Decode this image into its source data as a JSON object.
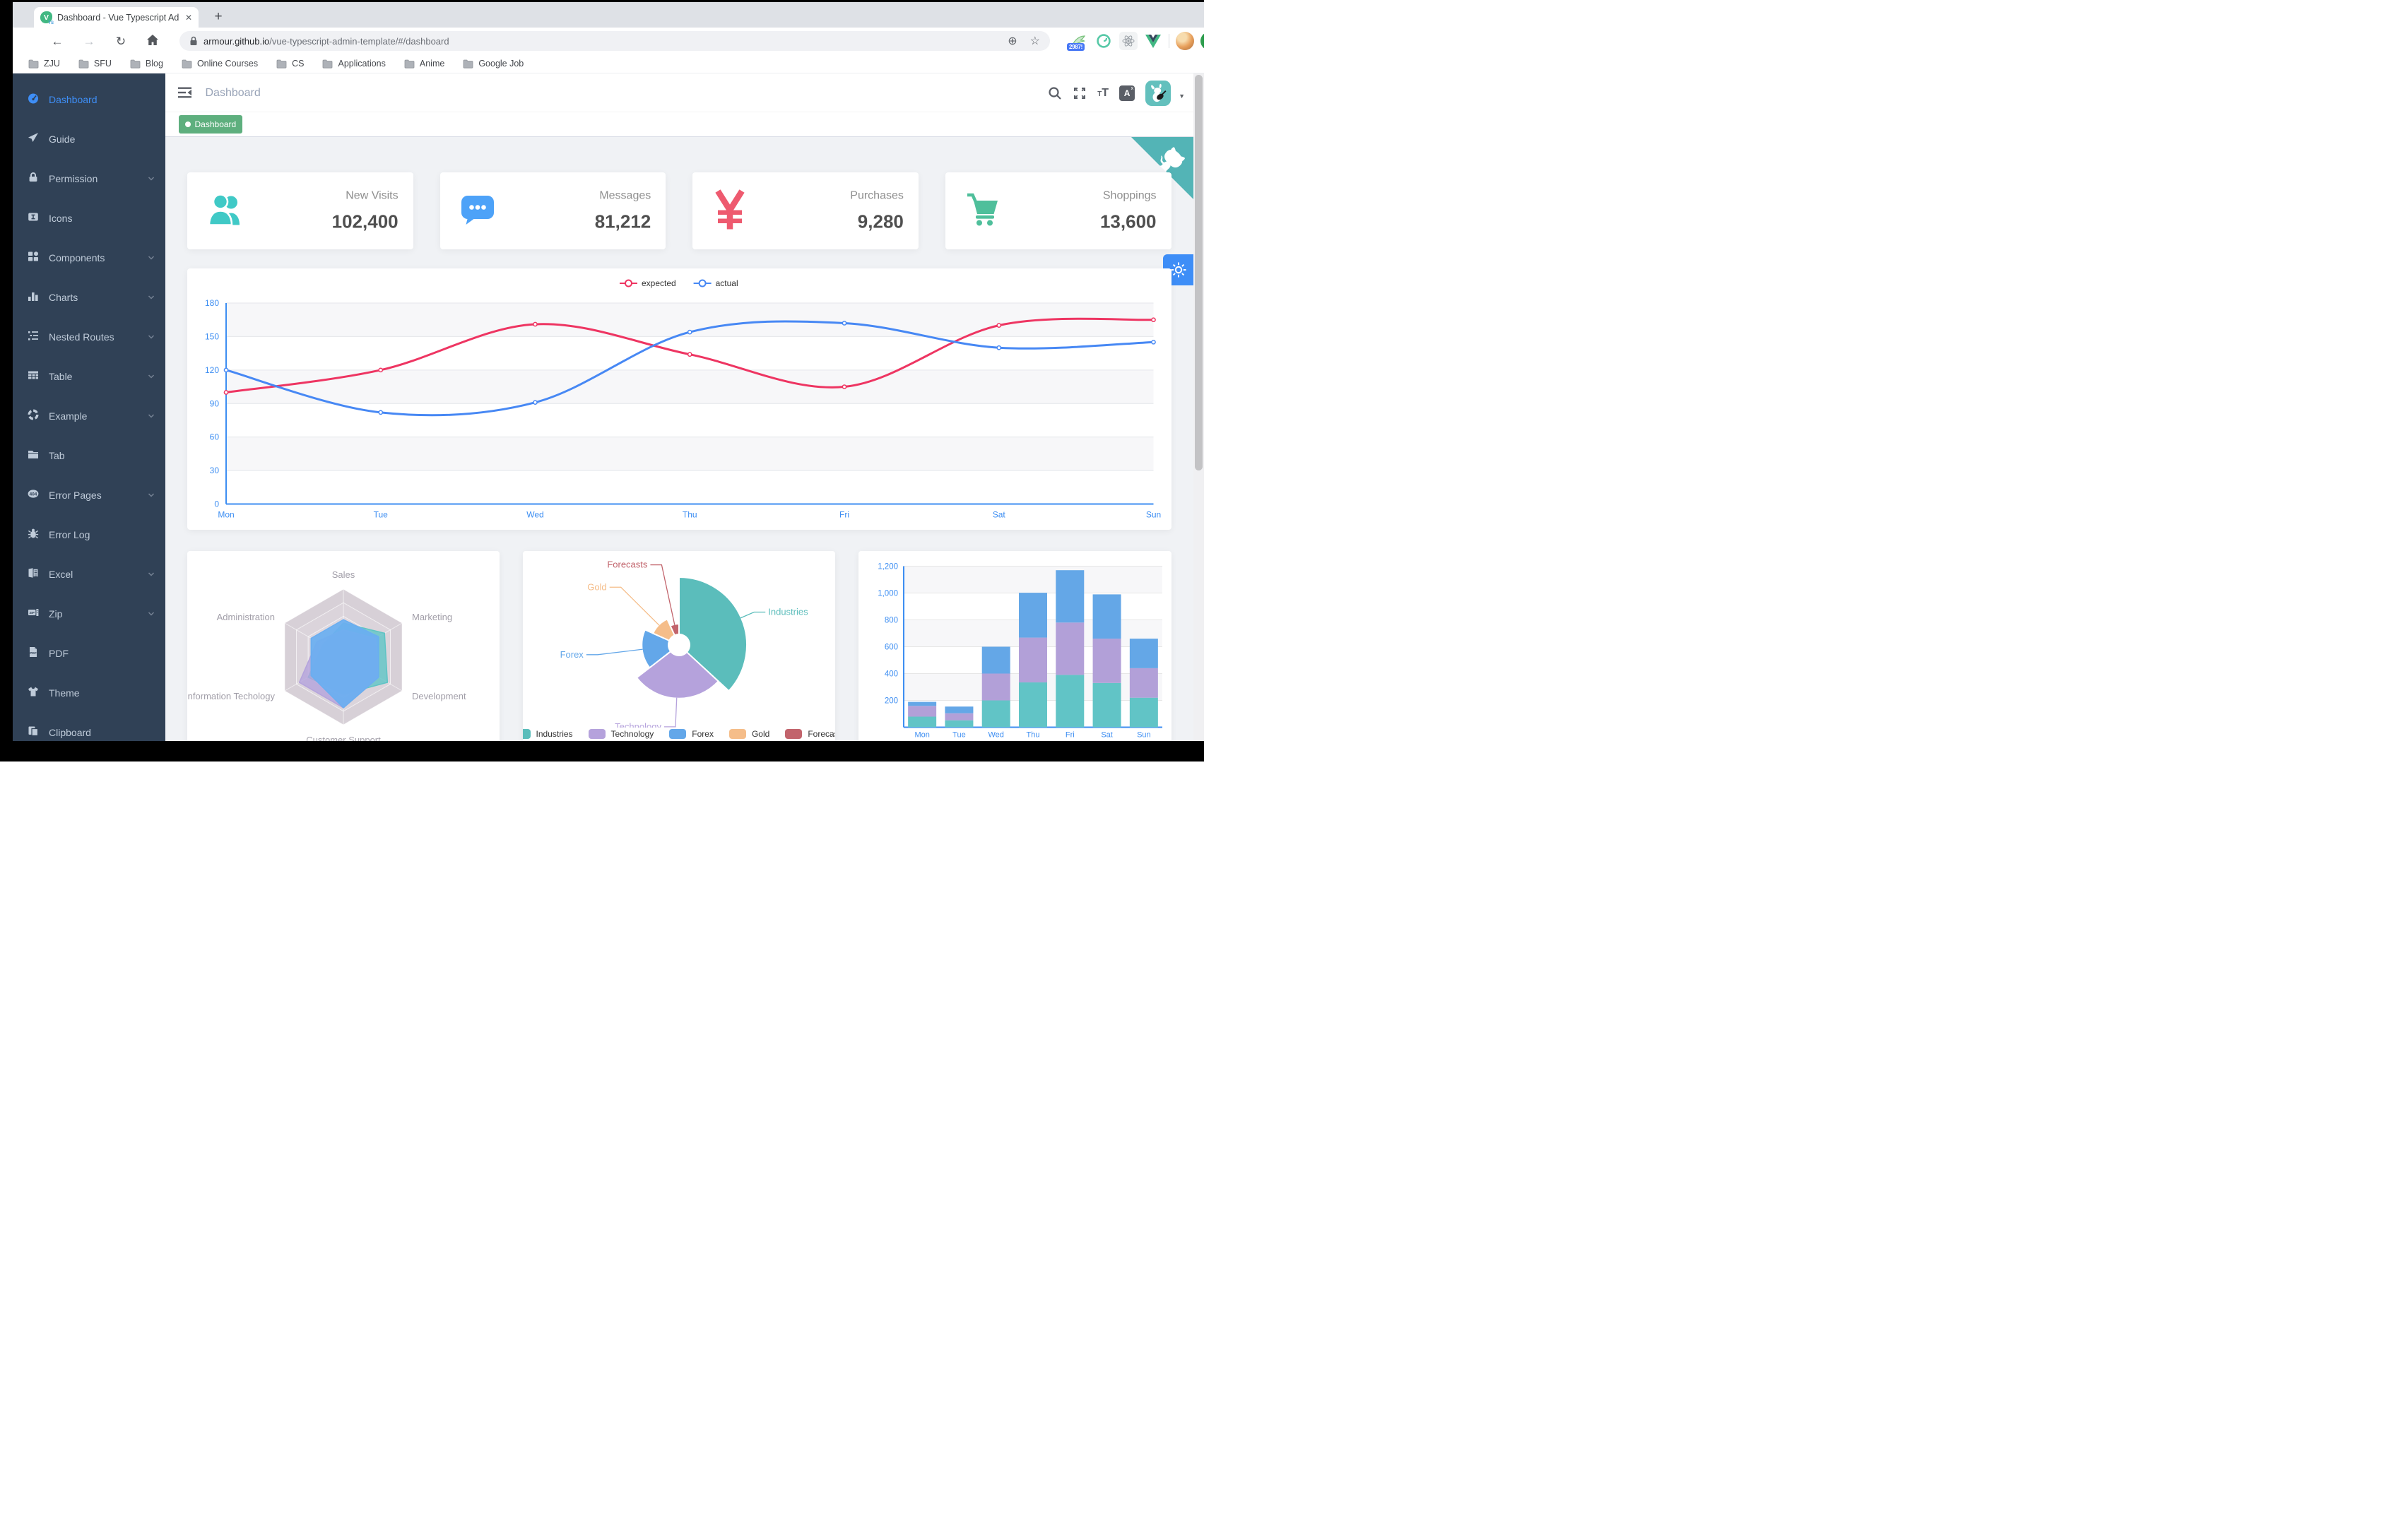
{
  "browser": {
    "tab_title": "Dashboard - Vue Typescript Ad",
    "close_label": "✕",
    "new_tab_label": "+",
    "back_label": "←",
    "forward_label": "→",
    "reload_label": "↻",
    "zoom_label": "⊕",
    "star_label": "☆",
    "update_label": "↑",
    "url_host": "armour.github.io",
    "url_path": "/vue-typescript-admin-template/#/dashboard",
    "bookmarks": [
      "ZJU",
      "SFU",
      "Blog",
      "Online Courses",
      "CS",
      "Applications",
      "Anime",
      "Google Job"
    ],
    "extension_badge": "2987!"
  },
  "app": {
    "breadcrumb": "Dashboard",
    "tag": {
      "label": "Dashboard",
      "color": "#5eaf7e"
    },
    "sidebar": [
      {
        "label": "Dashboard",
        "icon": "dashboard-icon",
        "active": true,
        "chevron": false
      },
      {
        "label": "Guide",
        "icon": "guide-icon",
        "active": false,
        "chevron": false
      },
      {
        "label": "Permission",
        "icon": "lock-icon",
        "active": false,
        "chevron": true
      },
      {
        "label": "Icons",
        "icon": "icons-icon",
        "active": false,
        "chevron": false
      },
      {
        "label": "Components",
        "icon": "components-icon",
        "active": false,
        "chevron": true
      },
      {
        "label": "Charts",
        "icon": "charts-icon",
        "active": false,
        "chevron": true
      },
      {
        "label": "Nested Routes",
        "icon": "nested-routes-icon",
        "active": false,
        "chevron": true
      },
      {
        "label": "Table",
        "icon": "table-icon",
        "active": false,
        "chevron": true
      },
      {
        "label": "Example",
        "icon": "example-icon",
        "active": false,
        "chevron": true
      },
      {
        "label": "Tab",
        "icon": "tab-icon",
        "active": false,
        "chevron": false
      },
      {
        "label": "Error Pages",
        "icon": "error-pages-icon",
        "active": false,
        "chevron": true
      },
      {
        "label": "Error Log",
        "icon": "bug-icon",
        "active": false,
        "chevron": false
      },
      {
        "label": "Excel",
        "icon": "excel-icon",
        "active": false,
        "chevron": true
      },
      {
        "label": "Zip",
        "icon": "zip-icon",
        "active": false,
        "chevron": true
      },
      {
        "label": "PDF",
        "icon": "pdf-icon",
        "active": false,
        "chevron": false
      },
      {
        "label": "Theme",
        "icon": "theme-icon",
        "active": false,
        "chevron": false
      },
      {
        "label": "Clipboard",
        "icon": "clipboard-icon",
        "active": false,
        "chevron": false
      }
    ],
    "stats": [
      {
        "title": "New Visits",
        "value": "102,400",
        "icon": "people-icon",
        "color": "#40c9c6"
      },
      {
        "title": "Messages",
        "value": "81,212",
        "icon": "message-icon",
        "color": "#4da2f8"
      },
      {
        "title": "Purchases",
        "value": "9,280",
        "icon": "money-icon",
        "color": "#ee5a6f"
      },
      {
        "title": "Shoppings",
        "value": "13,600",
        "icon": "shopping-icon",
        "color": "#4fbf9b"
      }
    ]
  },
  "chart_data": [
    {
      "type": "line",
      "x": [
        "Mon",
        "Tue",
        "Wed",
        "Thu",
        "Fri",
        "Sat",
        "Sun"
      ],
      "series": [
        {
          "name": "expected",
          "color": "#ee3562",
          "values": [
            100,
            120,
            161,
            134,
            105,
            160,
            165
          ]
        },
        {
          "name": "actual",
          "color": "#4788f4",
          "values": [
            120,
            82,
            91,
            154,
            162,
            140,
            145
          ]
        }
      ],
      "ylim": [
        0,
        180
      ],
      "ytick": 30,
      "legend_position": "top",
      "grid": true,
      "axis_color": "#3d8ef2"
    },
    {
      "type": "radar",
      "indicators": [
        {
          "name": "Sales",
          "max": 10000
        },
        {
          "name": "Marketing",
          "max": 20000
        },
        {
          "name": "Development",
          "max": 20000
        },
        {
          "name": "Customer Support",
          "max": 20000
        },
        {
          "name": "Information Techology",
          "max": 20000
        },
        {
          "name": "Administration",
          "max": 20000
        }
      ],
      "series": [
        {
          "color": "#5fc4c5",
          "values": [
            5000,
            14000,
            15000,
            11000,
            12000,
            7000
          ]
        },
        {
          "color": "#b4a3dc",
          "values": [
            4000,
            11000,
            12000,
            15000,
            15000,
            9000
          ]
        },
        {
          "color": "#6aaef0",
          "values": [
            5500,
            12000,
            12000,
            15000,
            11000,
            11000
          ]
        }
      ]
    },
    {
      "type": "pie",
      "rose": true,
      "slices": [
        {
          "name": "Industries",
          "value": 320,
          "color": "#5bbdbb"
        },
        {
          "name": "Technology",
          "value": 240,
          "color": "#b5a2dc"
        },
        {
          "name": "Forex",
          "value": 149,
          "color": "#63a7e9"
        },
        {
          "name": "Gold",
          "value": 100,
          "color": "#f5bd89"
        },
        {
          "name": "Forecasts",
          "value": 59,
          "color": "#c2646c"
        }
      ],
      "legend_position": "bottom"
    },
    {
      "type": "bar",
      "stacked": true,
      "categories": [
        "Mon",
        "Tue",
        "Wed",
        "Thu",
        "Fri",
        "Sat",
        "Sun"
      ],
      "series": [
        {
          "color": "#61c4c6",
          "values": [
            79,
            52,
            200,
            334,
            390,
            330,
            220
          ]
        },
        {
          "color": "#b2a0d8",
          "values": [
            80,
            52,
            200,
            334,
            390,
            330,
            220
          ]
        },
        {
          "color": "#64a7e7",
          "values": [
            30,
            50,
            200,
            334,
            390,
            330,
            220
          ]
        }
      ],
      "ylim": [
        0,
        1200
      ],
      "ytick": 200,
      "axis_color": "#3d8ef2"
    }
  ]
}
